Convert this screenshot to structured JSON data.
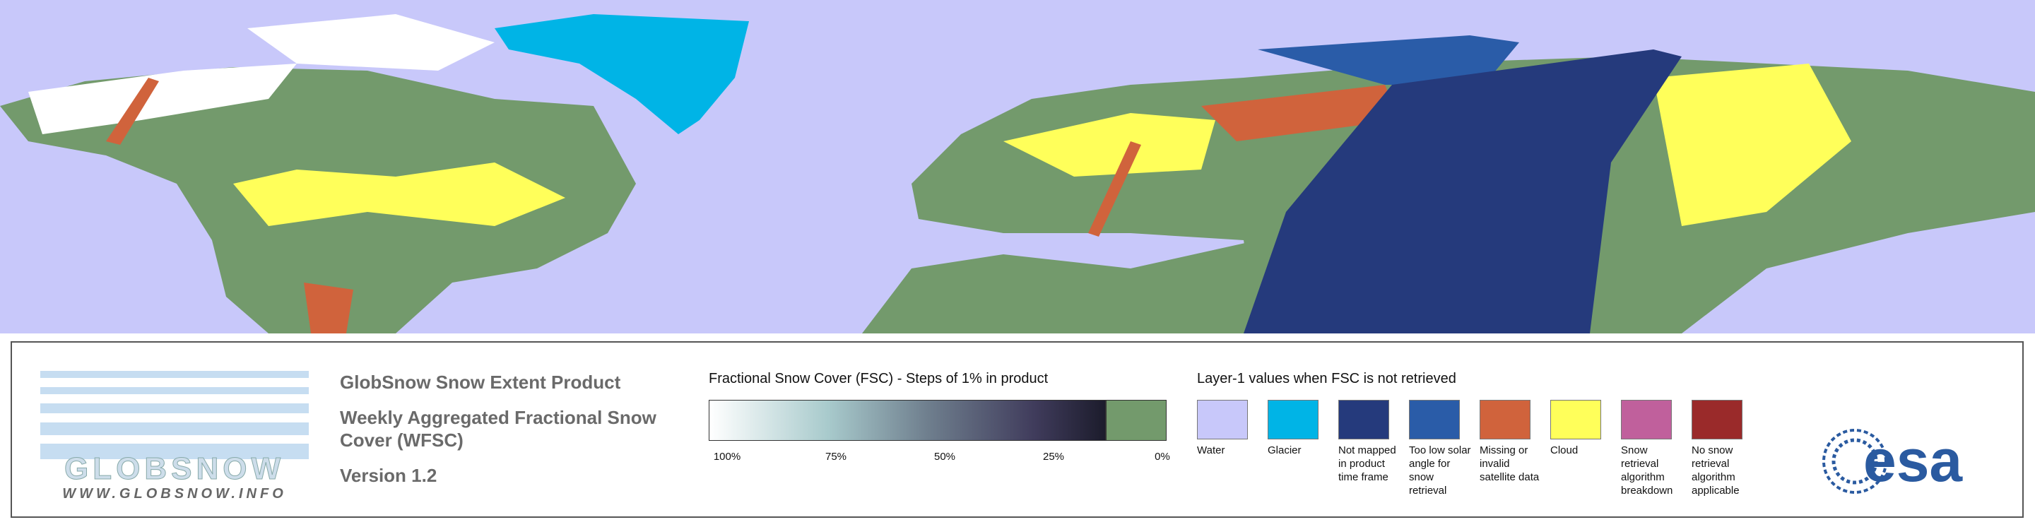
{
  "header": {
    "title": "GlobSnow Snow Extent Product",
    "subtitle": "Weekly Aggregated Fractional Snow Cover (WFSC)",
    "version": "Version 1.2"
  },
  "logo": {
    "name": "GLOBSNOW",
    "url": "WWW.GLOBSNOW.INFO",
    "agency": "esa"
  },
  "fsc_legend": {
    "title": "Fractional Snow Cover (FSC) - Steps of 1% in product",
    "tick_labels": [
      "100%",
      "75%",
      "50%",
      "25%",
      "0%"
    ]
  },
  "layer1_legend": {
    "title": "Layer-1 values when FSC is not retrieved",
    "items": [
      {
        "label": "Water",
        "color": "#c8c8fa"
      },
      {
        "label": "Glacier",
        "color": "#00b4e6"
      },
      {
        "label": "Not mapped in product time frame",
        "color": "#253a7c"
      },
      {
        "label": "Too low solar angle for snow retrieval",
        "color": "#2a5ca8"
      },
      {
        "label": "Missing or invalid satellite data",
        "color": "#d0633c"
      },
      {
        "label": "Cloud",
        "color": "#ffff5a"
      },
      {
        "label": "Snow retrieval algorithm breakdown",
        "color": "#c0609c"
      },
      {
        "label": "No snow retrieval algorithm applicable",
        "color": "#9a2a2a"
      }
    ]
  }
}
